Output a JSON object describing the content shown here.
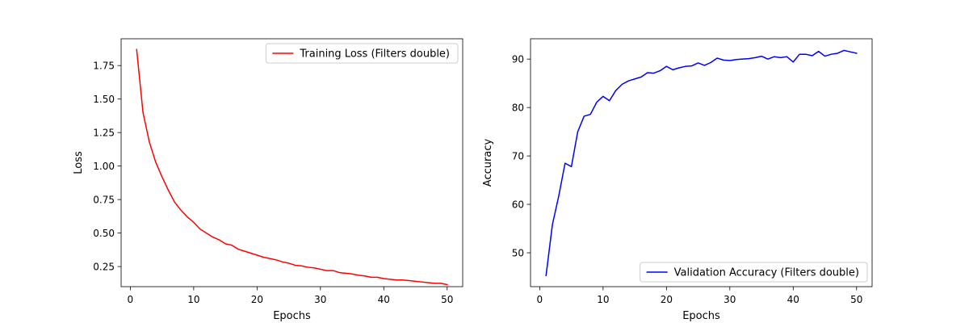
{
  "chart_data": [
    {
      "type": "line",
      "xlabel": "Epochs",
      "ylabel": "Loss",
      "xlim": [
        -1.45,
        52.45
      ],
      "ylim": [
        0.1,
        1.95
      ],
      "xticks": [
        0,
        10,
        20,
        30,
        40,
        50
      ],
      "yticks": [
        0.25,
        0.5,
        0.75,
        1.0,
        1.25,
        1.5,
        1.75
      ],
      "ytick_decimals": 2,
      "grid": false,
      "legend_position": "upper right",
      "series": [
        {
          "name": "Training Loss (Filters double)",
          "color": "#ff0000",
          "x": [
            1,
            2,
            3,
            4,
            5,
            6,
            7,
            8,
            9,
            10,
            11,
            12,
            13,
            14,
            15,
            16,
            17,
            18,
            19,
            20,
            21,
            22,
            23,
            24,
            25,
            26,
            27,
            28,
            29,
            30,
            31,
            32,
            33,
            34,
            35,
            36,
            37,
            38,
            39,
            40,
            41,
            42,
            43,
            44,
            45,
            46,
            47,
            48,
            49,
            50
          ],
          "values": [
            1.87,
            1.4,
            1.18,
            1.03,
            0.92,
            0.82,
            0.73,
            0.67,
            0.62,
            0.58,
            0.53,
            0.5,
            0.47,
            0.45,
            0.42,
            0.41,
            0.38,
            0.365,
            0.35,
            0.335,
            0.32,
            0.31,
            0.3,
            0.285,
            0.275,
            0.26,
            0.255,
            0.245,
            0.24,
            0.23,
            0.22,
            0.22,
            0.205,
            0.2,
            0.195,
            0.185,
            0.18,
            0.17,
            0.17,
            0.16,
            0.155,
            0.15,
            0.15,
            0.145,
            0.14,
            0.135,
            0.13,
            0.125,
            0.125,
            0.115
          ]
        }
      ]
    },
    {
      "type": "line",
      "xlabel": "Epochs",
      "ylabel": "Accuracy",
      "xlim": [
        -1.45,
        52.45
      ],
      "ylim": [
        43.0,
        94.2
      ],
      "xticks": [
        0,
        10,
        20,
        30,
        40,
        50
      ],
      "yticks": [
        50,
        60,
        70,
        80,
        90
      ],
      "ytick_decimals": 0,
      "grid": false,
      "legend_position": "lower right",
      "series": [
        {
          "name": "Validation Accuracy (Filters double)",
          "color": "#0000ff",
          "x": [
            1,
            2,
            3,
            4,
            5,
            6,
            7,
            8,
            9,
            10,
            11,
            12,
            13,
            14,
            15,
            16,
            17,
            18,
            19,
            20,
            21,
            22,
            23,
            24,
            25,
            26,
            27,
            28,
            29,
            30,
            31,
            32,
            33,
            34,
            35,
            36,
            37,
            38,
            39,
            40,
            41,
            42,
            43,
            44,
            45,
            46,
            47,
            48,
            49,
            50
          ],
          "values": [
            45.3,
            55.8,
            61.7,
            68.5,
            67.8,
            75.0,
            78.2,
            78.6,
            81.1,
            82.3,
            81.4,
            83.5,
            84.8,
            85.5,
            85.9,
            86.3,
            87.2,
            87.1,
            87.6,
            88.5,
            87.8,
            88.2,
            88.5,
            88.6,
            89.2,
            88.7,
            89.3,
            90.2,
            89.8,
            89.7,
            89.9,
            90.0,
            90.1,
            90.3,
            90.6,
            90.0,
            90.5,
            90.3,
            90.5,
            89.4,
            91.0,
            91.0,
            90.7,
            91.6,
            90.6,
            91.0,
            91.2,
            91.8,
            91.5,
            91.2
          ]
        }
      ]
    }
  ]
}
